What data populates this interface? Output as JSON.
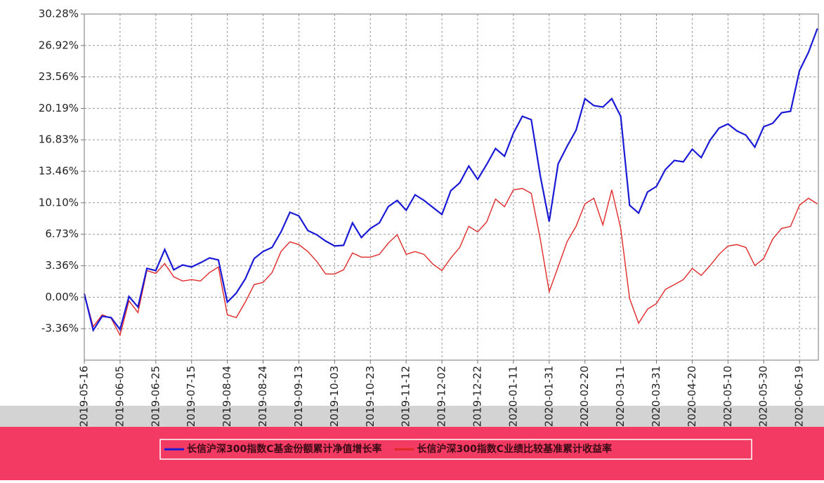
{
  "chart_data": {
    "type": "line",
    "x": [
      "2019-05-16",
      "2019-05-21",
      "2019-05-26",
      "2019-05-31",
      "2019-06-05",
      "2019-06-10",
      "2019-06-15",
      "2019-06-20",
      "2019-06-25",
      "2019-06-30",
      "2019-07-05",
      "2019-07-10",
      "2019-07-15",
      "2019-07-20",
      "2019-07-25",
      "2019-07-30",
      "2019-08-04",
      "2019-08-09",
      "2019-08-14",
      "2019-08-19",
      "2019-08-24",
      "2019-08-29",
      "2019-09-03",
      "2019-09-08",
      "2019-09-13",
      "2019-09-18",
      "2019-09-23",
      "2019-09-28",
      "2019-10-03",
      "2019-10-08",
      "2019-10-13",
      "2019-10-18",
      "2019-10-23",
      "2019-10-28",
      "2019-11-02",
      "2019-11-07",
      "2019-11-12",
      "2019-11-17",
      "2019-11-22",
      "2019-11-27",
      "2019-12-02",
      "2019-12-07",
      "2019-12-12",
      "2019-12-17",
      "2019-12-22",
      "2019-12-27",
      "2020-01-01",
      "2020-01-06",
      "2020-01-11",
      "2020-01-16",
      "2020-01-21",
      "2020-01-26",
      "2020-01-31",
      "2020-02-05",
      "2020-02-10",
      "2020-02-15",
      "2020-02-20",
      "2020-02-25",
      "2020-03-01",
      "2020-03-06",
      "2020-03-11",
      "2020-03-16",
      "2020-03-21",
      "2020-03-26",
      "2020-03-31",
      "2020-04-05",
      "2020-04-10",
      "2020-04-15",
      "2020-04-20",
      "2020-04-25",
      "2020-04-30",
      "2020-05-05",
      "2020-05-10",
      "2020-05-15",
      "2020-05-20",
      "2020-05-25",
      "2020-05-30",
      "2020-06-04",
      "2020-06-09",
      "2020-06-14",
      "2020-06-19",
      "2020-06-24",
      "2020-06-29"
    ],
    "series": [
      {
        "name": "长信沪深300指数C基金份额累计净值增长率",
        "color": "#1a1ad6",
        "values": [
          0.38,
          -3.53,
          -2.03,
          -2.18,
          -3.45,
          0.08,
          -1.05,
          3.08,
          2.85,
          5.1,
          2.93,
          3.45,
          3.23,
          3.68,
          4.2,
          3.98,
          -0.53,
          0.45,
          1.95,
          4.13,
          4.88,
          5.33,
          6.98,
          9.08,
          8.7,
          7.13,
          6.68,
          6.0,
          5.48,
          5.55,
          7.95,
          6.38,
          7.35,
          7.95,
          9.68,
          10.35,
          9.3,
          10.95,
          10.35,
          9.6,
          8.85,
          11.4,
          12.23,
          14.03,
          12.6,
          14.18,
          15.9,
          15.08,
          17.55,
          19.35,
          18.98,
          12.98,
          8.1,
          14.25,
          16.13,
          17.85,
          21.23,
          20.48,
          20.33,
          21.23,
          19.35,
          9.83,
          9.0,
          11.25,
          11.85,
          13.65,
          14.63,
          14.48,
          15.83,
          14.93,
          16.8,
          18.08,
          18.53,
          17.78,
          17.33,
          16.05,
          18.23,
          18.6,
          19.73,
          19.88,
          24.23,
          26.18,
          28.73
        ]
      },
      {
        "name": "长信沪深300指数C业绩比较基准累计收益率",
        "color": "#e02a2a",
        "values": [
          0.38,
          -3.15,
          -1.88,
          -2.25,
          -4.05,
          -0.38,
          -1.65,
          2.85,
          2.55,
          3.6,
          2.18,
          1.73,
          1.88,
          1.73,
          2.63,
          3.23,
          -1.88,
          -2.18,
          -0.53,
          1.35,
          1.58,
          2.63,
          4.88,
          5.93,
          5.63,
          4.88,
          3.83,
          2.48,
          2.48,
          2.93,
          4.73,
          4.28,
          4.28,
          4.58,
          5.78,
          6.68,
          4.58,
          4.88,
          4.58,
          3.53,
          2.85,
          4.2,
          5.33,
          7.58,
          6.98,
          8.03,
          10.5,
          9.68,
          11.48,
          11.63,
          11.1,
          6.23,
          0.6,
          3.23,
          5.93,
          7.58,
          9.98,
          10.58,
          7.73,
          11.48,
          7.35,
          -0.15,
          -2.78,
          -1.28,
          -0.68,
          0.83,
          1.35,
          1.88,
          3.08,
          2.33,
          3.38,
          4.58,
          5.48,
          5.63,
          5.33,
          3.38,
          4.13,
          6.23,
          7.35,
          7.58,
          9.83,
          10.58,
          9.98
        ]
      }
    ],
    "xlim": [
      "2019-05-16",
      "2020-06-29"
    ],
    "xticks": [
      "2019-05-16",
      "2019-06-05",
      "2019-06-25",
      "2019-07-15",
      "2019-08-04",
      "2019-08-24",
      "2019-09-13",
      "2019-10-03",
      "2019-10-23",
      "2019-11-12",
      "2019-12-02",
      "2019-12-22",
      "2020-01-11",
      "2020-01-31",
      "2020-02-20",
      "2020-03-11",
      "2020-03-31",
      "2020-04-20",
      "2020-05-10",
      "2020-05-30",
      "2020-06-19"
    ],
    "ylim": [
      -6.73,
      30.28
    ],
    "yticks": [
      {
        "value": -3.36,
        "label": "-3.36%"
      },
      {
        "value": 0,
        "label": "0.00%"
      },
      {
        "value": 3.36,
        "label": "3.36%"
      },
      {
        "value": 6.73,
        "label": "6.73%"
      },
      {
        "value": 10.1,
        "label": "10.10%"
      },
      {
        "value": 13.46,
        "label": "13.46%"
      },
      {
        "value": 16.83,
        "label": "16.83%"
      },
      {
        "value": 20.19,
        "label": "20.19%"
      },
      {
        "value": 23.56,
        "label": "23.56%"
      },
      {
        "value": 26.92,
        "label": "26.92%"
      },
      {
        "value": 30.28,
        "label": "30.28%"
      }
    ],
    "grid": true
  }
}
